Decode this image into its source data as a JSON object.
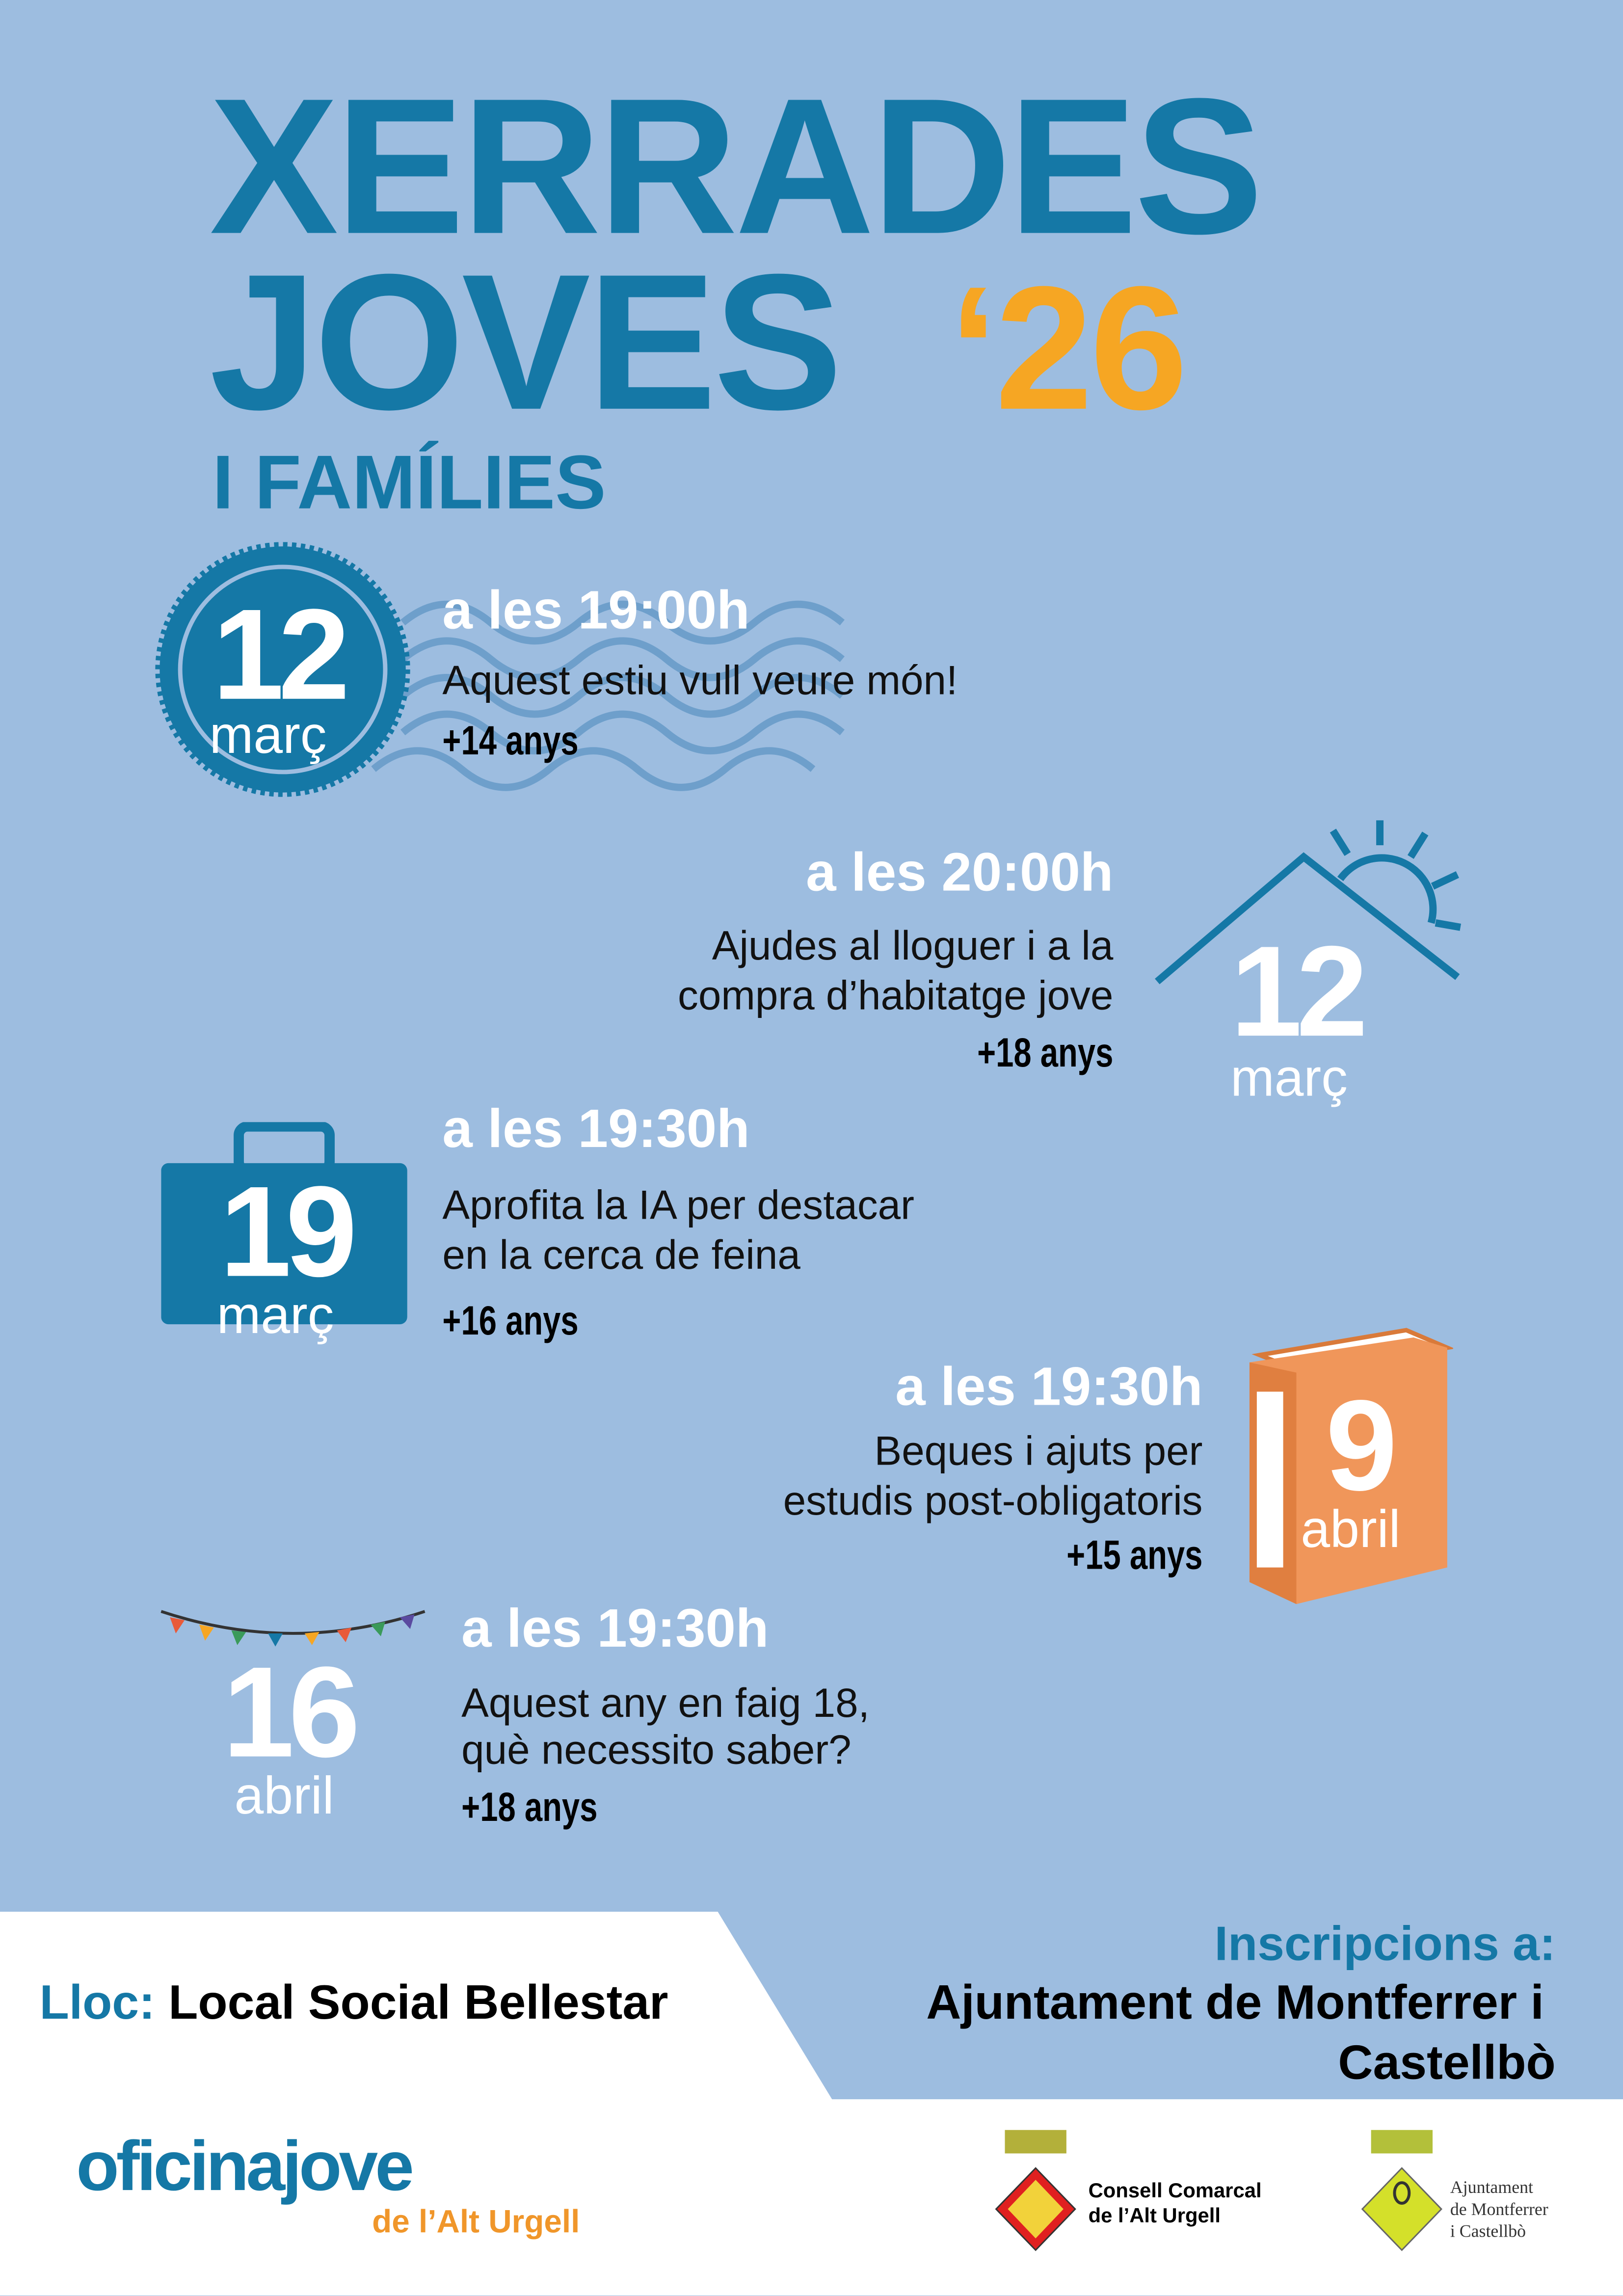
{
  "header": {
    "line1": "XERRADES",
    "line2": "JOVES",
    "year": "‘26",
    "subtitle": "I FAMÍLIES"
  },
  "colors": {
    "background": "#9dbde0",
    "primary": "#1578a6",
    "accent": "#f6a623",
    "book": "#f0965a"
  },
  "events": [
    {
      "day": "12",
      "month": "març",
      "time": "a les 19:00h",
      "title_lines": [
        "Aquest estiu vull veure món!"
      ],
      "age": "+14 anys",
      "icon": "postmark-stamp-icon"
    },
    {
      "day": "12",
      "month": "març",
      "time": "a les 20:00h",
      "title_lines": [
        "Ajudes al lloguer i a la",
        "compra d’habitatge jove"
      ],
      "age": "+18 anys",
      "icon": "house-sun-icon"
    },
    {
      "day": "19",
      "month": "març",
      "time": "a les 19:30h",
      "title_lines": [
        "Aprofita la IA per destacar",
        "en la cerca de feina"
      ],
      "age": "+16 anys",
      "icon": "briefcase-icon"
    },
    {
      "day": "9",
      "month": "abril",
      "time": "a les 19:30h",
      "title_lines": [
        "Beques i ajuts per",
        "estudis post-obligatoris"
      ],
      "age": "+15 anys",
      "icon": "book-icon"
    },
    {
      "day": "16",
      "month": "abril",
      "time": "a les 19:30h",
      "title_lines": [
        "Aquest any en faig 18,",
        "què necessito saber?"
      ],
      "age": "+18 anys",
      "icon": "bunting-icon"
    }
  ],
  "footer": {
    "place_label": "Lloc:",
    "place_value": "Local Social Bellestar",
    "registration_label": "Inscripcions a:",
    "registration_line1": "Ajuntament de Montferrer i",
    "registration_line2": "Castellbò"
  },
  "logos": {
    "oficina_main": "oficinajove",
    "oficina_sub": "de l’Alt Urgell",
    "consell_line1": "Consell Comarcal",
    "consell_line2": "de l’Alt Urgell",
    "ajuntament_line1": "Ajuntament",
    "ajuntament_line2": "de Montferrer",
    "ajuntament_line3": "i Castellbò"
  }
}
